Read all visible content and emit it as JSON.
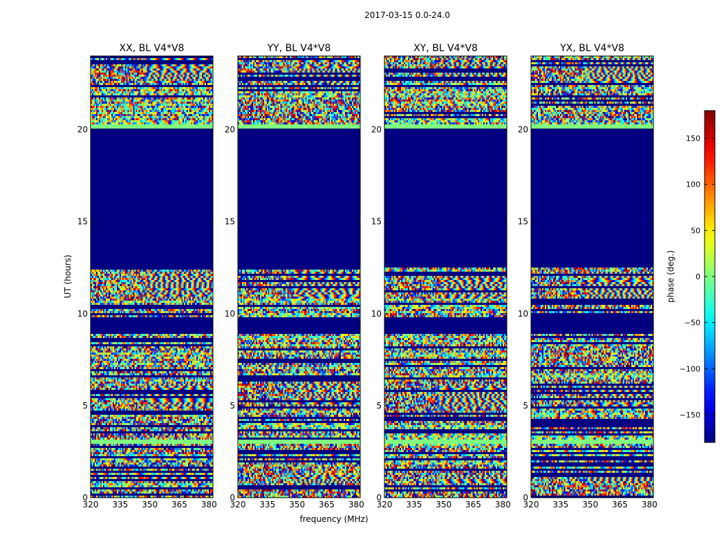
{
  "figure": {
    "suptitle": "2017-03-15 0.0-24.0",
    "xlabel": "frequency (MHz)",
    "ylabel": "UT (hours)",
    "colorbar_label": "phase (deg.)"
  },
  "chart_data": {
    "type": "heatmap",
    "x_range": [
      320,
      382
    ],
    "y_range": [
      0,
      24
    ],
    "x_ticks": [
      320,
      335,
      350,
      365,
      380
    ],
    "y_ticks": [
      0,
      5,
      10,
      15,
      20
    ],
    "x_tick_labels": [
      "320",
      "335",
      "350",
      "365",
      "380"
    ],
    "y_tick_labels": [
      "0",
      "5",
      "10",
      "15",
      "20"
    ],
    "colormap": "jet",
    "color_range": [
      -180,
      180
    ],
    "colorbar_ticks": [
      -150,
      -100,
      -50,
      0,
      50,
      100,
      150
    ],
    "colorbar_tick_labels": [
      "−150",
      "−100",
      "−50",
      "0",
      "50",
      "100",
      "150"
    ],
    "panels": [
      {
        "title": "XX, BL V4*V8",
        "variant": "XX"
      },
      {
        "title": "YY, BL V4*V8",
        "variant": "YY"
      },
      {
        "title": "XY, BL V4*V8",
        "variant": "XY"
      },
      {
        "title": "YX, BL V4*V8",
        "variant": "YX"
      }
    ],
    "flagged_uniform_bands_hours": [
      [
        9.8,
        8.9
      ],
      [
        12.5,
        20.1
      ]
    ],
    "fringe_bands_hours": [
      [
        4.9,
        6.2
      ],
      [
        10.8,
        12.3
      ],
      [
        0.8,
        1.2
      ],
      [
        22.5,
        23.9
      ]
    ]
  }
}
